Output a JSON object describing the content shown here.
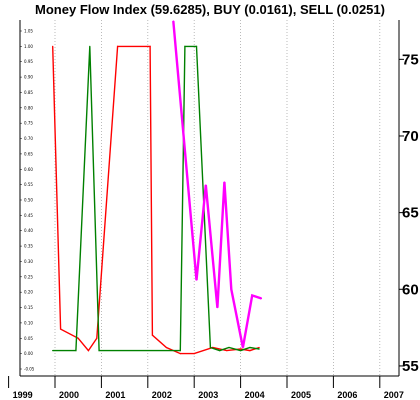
{
  "chart_data": {
    "type": "line",
    "title": "Money Flow Index (59.6285), BUY (0.0161), SELL (0.0251)",
    "x_ticks": [
      "1999",
      "2000",
      "2001",
      "2002",
      "2003",
      "2004",
      "2005",
      "2006",
      "2007"
    ],
    "left_axis": {
      "ylim": [
        -0.05,
        1.05
      ],
      "ticks": [
        "-0.05",
        "0.00",
        "0.05",
        "0.10",
        "0.15",
        "0.20",
        "0.25",
        "0.30",
        "0.35",
        "0.40",
        "0.45",
        "0.50",
        "0.55",
        "0.60",
        "0.65",
        "0.70",
        "0.75",
        "0.80",
        "0.85",
        "0.90",
        "0.95",
        "1.00",
        "1.05"
      ]
    },
    "right_axis": {
      "ylim": [
        54.8,
        77.5
      ],
      "ticks": [
        "55",
        "60",
        "65",
        "70",
        "75"
      ]
    },
    "series": [
      {
        "axis": "left",
        "color": "#ff0000",
        "points": [
          [
            1999.95,
            1.0
          ],
          [
            2000.12,
            0.08
          ],
          [
            2000.5,
            0.05
          ],
          [
            2000.72,
            0.01
          ],
          [
            2000.9,
            0.05
          ],
          [
            2001.35,
            1.0
          ],
          [
            2002.05,
            1.0
          ],
          [
            2002.1,
            0.06
          ],
          [
            2002.4,
            0.02
          ],
          [
            2002.7,
            0.0
          ],
          [
            2003.0,
            0.0
          ],
          [
            2003.4,
            0.02
          ],
          [
            2003.7,
            0.01
          ],
          [
            2004.0,
            0.015
          ],
          [
            2004.2,
            0.01
          ],
          [
            2004.4,
            0.02
          ]
        ]
      },
      {
        "axis": "left",
        "color": "#008000",
        "points": [
          [
            1999.95,
            0.01
          ],
          [
            2000.45,
            0.01
          ],
          [
            2000.75,
            1.0
          ],
          [
            2000.95,
            0.01
          ],
          [
            2002.7,
            0.01
          ],
          [
            2002.8,
            1.0
          ],
          [
            2003.05,
            1.0
          ],
          [
            2003.35,
            0.02
          ],
          [
            2003.55,
            0.01
          ],
          [
            2003.75,
            0.02
          ],
          [
            2004.0,
            0.01
          ],
          [
            2004.2,
            0.02
          ],
          [
            2004.4,
            0.015
          ]
        ]
      },
      {
        "axis": "right",
        "color": "#ff00ff",
        "points": [
          [
            2002.55,
            77.5
          ],
          [
            2003.05,
            60.6
          ],
          [
            2003.25,
            66.8
          ],
          [
            2003.5,
            58.8
          ],
          [
            2003.65,
            67.0
          ],
          [
            2003.8,
            60.0
          ],
          [
            2004.05,
            56.2
          ],
          [
            2004.25,
            59.6
          ],
          [
            2004.45,
            59.4
          ]
        ]
      }
    ]
  }
}
